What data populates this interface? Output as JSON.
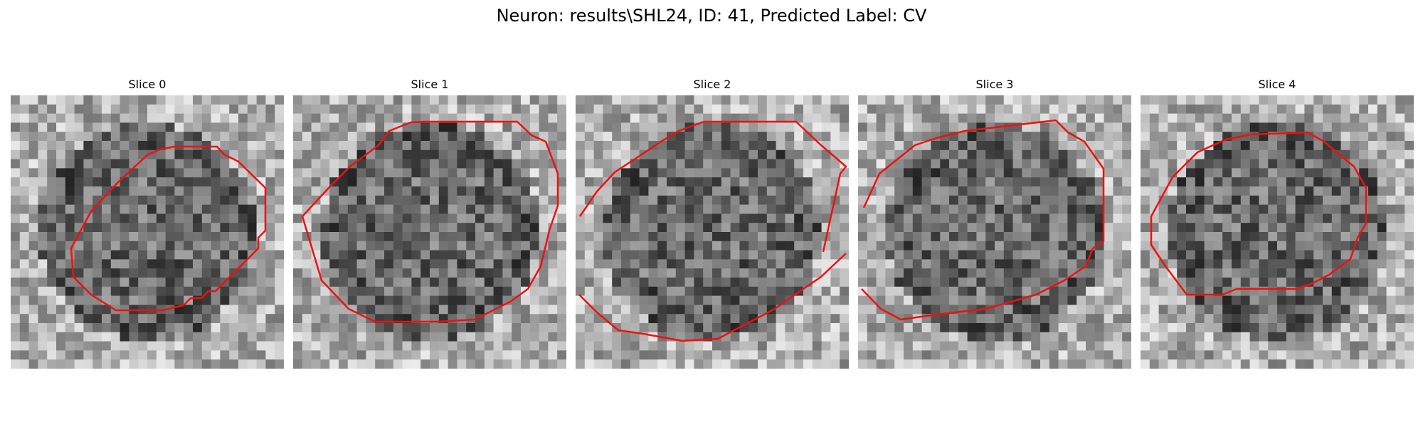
{
  "figure": {
    "title": "Neuron: results\\SHL24, ID: 41, Predicted Label: CV"
  },
  "panels": [
    {
      "title": "Slice 0"
    },
    {
      "title": "Slice 1"
    },
    {
      "title": "Slice 2"
    },
    {
      "title": "Slice 3"
    },
    {
      "title": "Slice 4"
    }
  ],
  "colors": {
    "background": "#ffffff",
    "contour": "#ee1111",
    "image_colormap": "grayscale"
  }
}
